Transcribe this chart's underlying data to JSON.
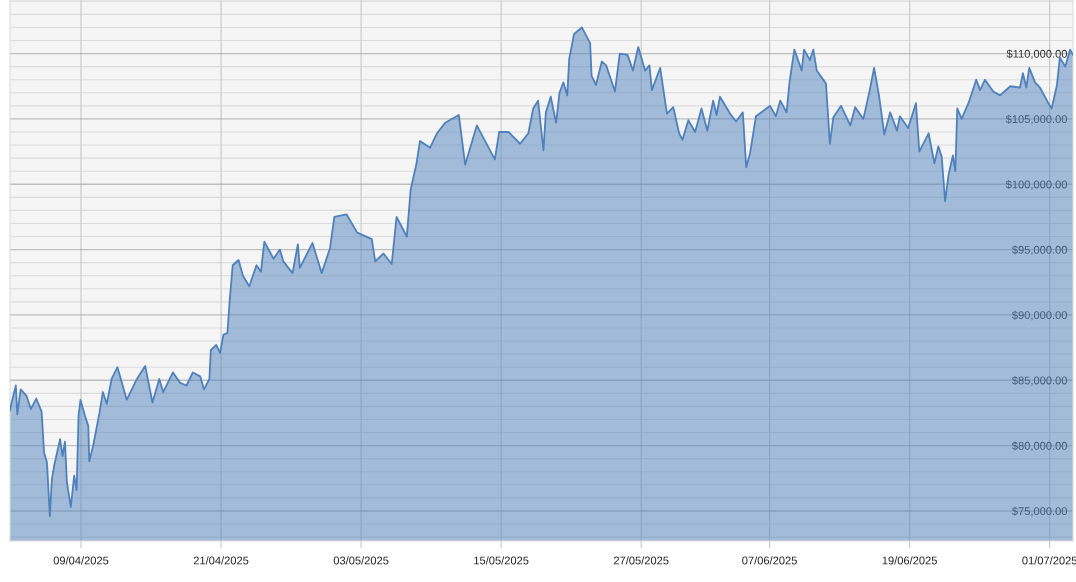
{
  "chart_data": {
    "type": "area",
    "x": [
      "2025-04-02T22:00",
      "2025-04-03T02:00",
      "2025-04-03T10:00",
      "2025-04-03T13:00",
      "2025-04-03T20:00",
      "2025-04-04T08:00",
      "2025-04-04T17:00",
      "2025-04-05T04:00",
      "2025-04-05T15:00",
      "2025-04-05T20:00",
      "2025-04-06T02:00",
      "2025-04-06T08:00",
      "2025-04-06T12:00",
      "2025-04-06T17:00",
      "2025-04-07T05:00",
      "2025-04-07T10:00",
      "2025-04-07T15:00",
      "2025-04-07T19:00",
      "2025-04-08T03:00",
      "2025-04-08T10:00",
      "2025-04-08T15:00",
      "2025-04-08T19:00",
      "2025-04-08T23:00",
      "2025-04-09T08:00",
      "2025-04-09T15:00",
      "2025-04-09T17:00",
      "2025-04-10T01:00",
      "2025-04-10T14:00",
      "2025-04-10T21:00",
      "2025-04-11T05:00",
      "2025-04-11T15:00",
      "2025-04-12T03:00",
      "2025-04-12T22:00",
      "2025-04-13T19:00",
      "2025-04-14T12:00",
      "2025-04-15T03:00",
      "2025-04-15T17:00",
      "2025-04-16T01:00",
      "2025-04-16T21:00",
      "2025-04-17T12:00",
      "2025-04-18T01:00",
      "2025-04-18T14:00",
      "2025-04-19T05:00",
      "2025-04-19T13:00",
      "2025-04-20T00:00",
      "2025-04-20T03:00",
      "2025-04-20T14:00",
      "2025-04-20T22:00",
      "2025-04-21T05:00",
      "2025-04-21T13:00",
      "2025-04-21T18:00",
      "2025-04-22T00:00",
      "2025-04-22T12:00",
      "2025-04-22T21:00",
      "2025-04-23T10:00",
      "2025-04-24T01:00",
      "2025-04-24T10:00",
      "2025-04-24T17:00",
      "2025-04-25T12:00",
      "2025-04-26T01:00",
      "2025-04-26T08:00",
      "2025-04-27T03:00",
      "2025-04-27T14:00",
      "2025-04-27T18:00",
      "2025-04-28T20:00",
      "2025-04-29T15:00",
      "2025-04-30T08:00",
      "2025-04-30T17:00",
      "2025-05-01T18:00",
      "2025-05-02T16:00",
      "2025-05-03T22:00",
      "2025-05-04T05:00",
      "2025-05-04T22:00",
      "2025-05-05T15:00",
      "2025-05-06T01:00",
      "2025-05-06T22:00",
      "2025-05-07T06:00",
      "2025-05-07T18:00",
      "2025-05-08T01:00",
      "2025-05-08T22:00",
      "2025-05-09T12:00",
      "2025-05-10T05:00",
      "2025-05-11T09:00",
      "2025-05-11T22:00",
      "2025-05-12T22:00",
      "2025-05-14T11:00",
      "2025-05-14T20:00",
      "2025-05-15T15:00",
      "2025-05-16T15:00",
      "2025-05-17T08:00",
      "2025-05-17T18:00",
      "2025-05-18T04:00",
      "2025-05-18T15:00",
      "2025-05-18T20:00",
      "2025-05-19T06:00",
      "2025-05-19T17:00",
      "2025-05-20T00:00",
      "2025-05-20T08:00",
      "2025-05-20T16:00",
      "2025-05-20T20:00",
      "2025-05-21T06:00",
      "2025-05-21T22:00",
      "2025-05-22T08:00",
      "2025-05-22T15:00",
      "2025-05-22T18:00",
      "2025-05-23T03:00",
      "2025-05-23T15:00",
      "2025-05-24T00:00",
      "2025-05-24T18:00",
      "2025-05-25T04:00",
      "2025-05-25T20:00",
      "2025-05-26T07:00",
      "2025-05-26T18:00",
      "2025-05-27T08:00",
      "2025-05-27T17:00",
      "2025-05-27T22:00",
      "2025-05-28T15:00",
      "2025-05-29T05:00",
      "2025-05-29T18:00",
      "2025-05-30T06:00",
      "2025-05-30T13:00",
      "2025-05-31T01:00",
      "2025-05-31T15:00",
      "2025-06-01T04:00",
      "2025-06-01T16:00",
      "2025-06-02T04:00",
      "2025-06-02T11:00",
      "2025-06-02T18:00",
      "2025-06-03T15:00",
      "2025-06-04T03:00",
      "2025-06-04T17:00",
      "2025-06-05T00:00",
      "2025-06-05T08:00",
      "2025-06-05T20:00",
      "2025-06-07T01:00",
      "2025-06-07T13:00",
      "2025-06-07T22:00",
      "2025-06-08T11:00",
      "2025-06-08T17:00",
      "2025-06-09T03:00",
      "2025-06-09T18:00",
      "2025-06-09T23:00",
      "2025-06-10T11:00",
      "2025-06-10T18:00",
      "2025-06-11T01:00",
      "2025-06-11T20:00",
      "2025-06-12T04:00",
      "2025-06-12T11:00",
      "2025-06-13T03:00",
      "2025-06-13T22:00",
      "2025-06-14T08:00",
      "2025-06-15T01:00",
      "2025-06-15T14:00",
      "2025-06-15T23:00",
      "2025-06-16T09:00",
      "2025-06-16T20:00",
      "2025-06-17T08:00",
      "2025-06-17T22:00",
      "2025-06-18T04:00",
      "2025-06-18T21:00",
      "2025-06-19T13:00",
      "2025-06-19T20:00",
      "2025-06-20T15:00",
      "2025-06-21T03:00",
      "2025-06-21T11:00",
      "2025-06-21T18:00",
      "2025-06-22T01:00",
      "2025-06-22T08:00",
      "2025-06-22T17:00",
      "2025-06-22T22:00",
      "2025-06-23T02:00",
      "2025-06-23T11:00",
      "2025-06-24T01:00",
      "2025-06-24T17:00",
      "2025-06-25T01:00",
      "2025-06-25T11:00",
      "2025-06-26T04:00",
      "2025-06-26T18:00",
      "2025-06-27T15:00",
      "2025-06-28T11:00",
      "2025-06-28T17:00",
      "2025-06-29T00:00",
      "2025-06-29T06:00",
      "2025-06-29T18:00",
      "2025-06-30T04:00",
      "2025-06-30T20:00",
      "2025-07-01T04:00",
      "2025-07-01T15:00",
      "2025-07-01T21:00",
      "2025-07-02T08:00",
      "2025-07-02T18:00",
      "2025-07-03T00:00"
    ],
    "series": [
      {
        "color": "#4f81bd",
        "values": [
          82700,
          83400,
          84600,
          82400,
          84300,
          83800,
          82800,
          83600,
          82600,
          79500,
          78700,
          74600,
          77400,
          78500,
          80500,
          79200,
          80300,
          77200,
          75300,
          77700,
          76600,
          82300,
          83500,
          82300,
          81500,
          78800,
          80000,
          82500,
          84100,
          83200,
          85100,
          86000,
          83500,
          85100,
          86100,
          83300,
          85100,
          84100,
          85600,
          84800,
          84600,
          85600,
          85300,
          84300,
          85100,
          87300,
          87700,
          87100,
          88500,
          88600,
          91200,
          93800,
          94200,
          93000,
          92200,
          93800,
          93300,
          95600,
          94300,
          95000,
          94100,
          93200,
          95400,
          93600,
          95500,
          93200,
          95100,
          97500,
          97700,
          96300,
          95800,
          94100,
          94700,
          93900,
          97500,
          96000,
          99600,
          101600,
          103300,
          102800,
          103900,
          104700,
          105300,
          101500,
          104500,
          101900,
          104000,
          104000,
          103100,
          103900,
          105800,
          106400,
          102600,
          105500,
          106700,
          104700,
          107000,
          107800,
          106800,
          109600,
          111500,
          112000,
          111300,
          110800,
          108300,
          107600,
          109400,
          109100,
          107100,
          110000,
          109900,
          108700,
          110500,
          108700,
          109100,
          107200,
          108900,
          105400,
          105900,
          103900,
          103400,
          104900,
          104000,
          105800,
          104100,
          106400,
          105300,
          106700,
          105400,
          104800,
          105500,
          101300,
          102400,
          105200,
          106000,
          105200,
          106400,
          105500,
          107800,
          110300,
          108700,
          110300,
          109500,
          110300,
          108700,
          107700,
          103100,
          105100,
          106000,
          104500,
          105900,
          105000,
          107200,
          108900,
          106800,
          103800,
          105500,
          104100,
          105200,
          104300,
          106200,
          102500,
          103900,
          101600,
          102900,
          102100,
          98700,
          100700,
          102200,
          101000,
          105800,
          105000,
          106200,
          108000,
          107200,
          108000,
          107100,
          106800,
          107500,
          107400,
          108500,
          107400,
          108900,
          107800,
          107400,
          106300,
          105800,
          107600,
          109700,
          109000,
          110300,
          109900
        ]
      }
    ],
    "xlim": [
      "2025-04-02T22:00",
      "2025-07-03T00:00"
    ],
    "ylim": [
      72700,
      114100
    ],
    "xticks": [
      {
        "value": "2025-04-09",
        "label": "09/04/2025"
      },
      {
        "value": "2025-04-21",
        "label": "21/04/2025"
      },
      {
        "value": "2025-05-03",
        "label": "03/05/2025"
      },
      {
        "value": "2025-05-15",
        "label": "15/05/2025"
      },
      {
        "value": "2025-05-27",
        "label": "27/05/2025"
      },
      {
        "value": "2025-06-07",
        "label": "07/06/2025"
      },
      {
        "value": "2025-06-19",
        "label": "19/06/2025"
      },
      {
        "value": "2025-07-01",
        "label": "01/07/2025"
      }
    ],
    "yticks": [
      {
        "value": 73000,
        "label": null
      },
      {
        "value": 74000,
        "label": null
      },
      {
        "value": 75000,
        "label": "$75,000.00"
      },
      {
        "value": 76000,
        "label": null
      },
      {
        "value": 77000,
        "label": null
      },
      {
        "value": 78000,
        "label": null
      },
      {
        "value": 79000,
        "label": null
      },
      {
        "value": 80000,
        "label": "$80,000.00"
      },
      {
        "value": 81000,
        "label": null
      },
      {
        "value": 82000,
        "label": null
      },
      {
        "value": 83000,
        "label": null
      },
      {
        "value": 84000,
        "label": null
      },
      {
        "value": 85000,
        "label": "$85,000.00"
      },
      {
        "value": 86000,
        "label": null
      },
      {
        "value": 87000,
        "label": null
      },
      {
        "value": 88000,
        "label": null
      },
      {
        "value": 89000,
        "label": null
      },
      {
        "value": 90000,
        "label": "$90,000.00"
      },
      {
        "value": 91000,
        "label": null
      },
      {
        "value": 92000,
        "label": null
      },
      {
        "value": 93000,
        "label": null
      },
      {
        "value": 94000,
        "label": null
      },
      {
        "value": 95000,
        "label": "$95,000.00"
      },
      {
        "value": 96000,
        "label": null
      },
      {
        "value": 97000,
        "label": null
      },
      {
        "value": 98000,
        "label": null
      },
      {
        "value": 99000,
        "label": null
      },
      {
        "value": 100000,
        "label": "$100,000.00"
      },
      {
        "value": 101000,
        "label": null
      },
      {
        "value": 102000,
        "label": null
      },
      {
        "value": 103000,
        "label": null
      },
      {
        "value": 104000,
        "label": null
      },
      {
        "value": 105000,
        "label": "$105,000.00"
      },
      {
        "value": 106000,
        "label": null
      },
      {
        "value": 107000,
        "label": null
      },
      {
        "value": 108000,
        "label": null
      },
      {
        "value": 109000,
        "label": null
      },
      {
        "value": 110000,
        "label": "$110,000.00"
      },
      {
        "value": 111000,
        "label": null
      },
      {
        "value": 112000,
        "label": null
      },
      {
        "value": 113000,
        "label": null
      },
      {
        "value": 114000,
        "label": null
      }
    ],
    "grid": true
  }
}
